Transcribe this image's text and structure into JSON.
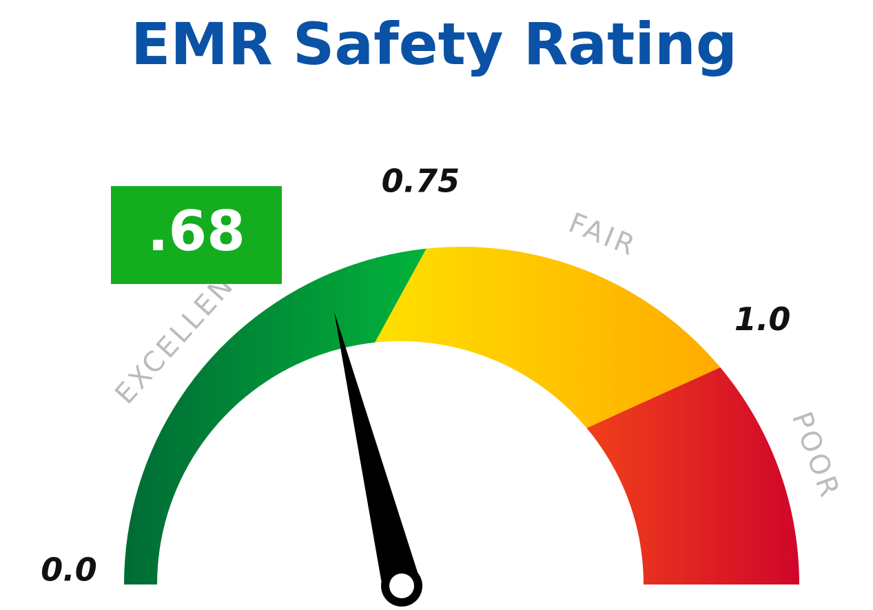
{
  "chart_data": {
    "type": "gauge",
    "title": "EMR Safety Rating",
    "value": 0.68,
    "value_label": ".68",
    "value_color": "#13ad1f",
    "ticks": [
      {
        "value": 0,
        "label": "0.0"
      },
      0.75,
      {
        "value": 1,
        "label": "1.0"
      }
    ],
    "zones": [
      {
        "label": "EXCELLENT",
        "color": "#0f8a3a"
      },
      {
        "label": "FAIR",
        "color": "#fbc400"
      },
      {
        "label": "POOR",
        "color": "#e2261f"
      }
    ]
  }
}
